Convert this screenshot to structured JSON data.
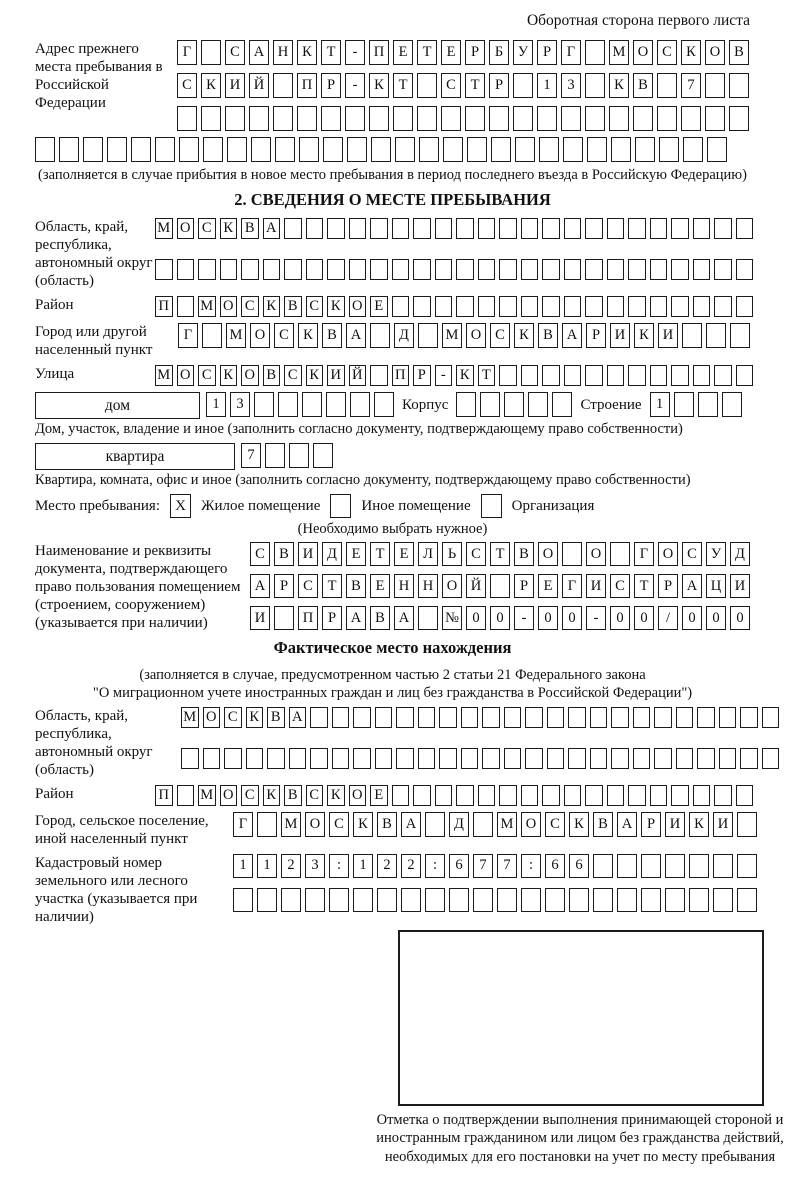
{
  "page": {
    "header_note": "Оборотная сторона первого листа"
  },
  "prev_address": {
    "label": "Адрес прежнего места пребывания в Российской Федерации",
    "rows": [
      [
        "Г",
        "",
        "С",
        "А",
        "Н",
        "К",
        "Т",
        "-",
        "П",
        "Е",
        "Т",
        "Е",
        "Р",
        "Б",
        "У",
        "Р",
        "Г",
        "",
        "М",
        "О",
        "С",
        "К",
        "О",
        "В"
      ],
      [
        "С",
        "К",
        "И",
        "Й",
        "",
        "П",
        "Р",
        "-",
        "К",
        "Т",
        "",
        "С",
        "Т",
        "Р",
        "",
        "1",
        "3",
        "",
        "К",
        "В",
        "",
        "7",
        "",
        ""
      ],
      [
        "",
        "",
        "",
        "",
        "",
        "",
        "",
        "",
        "",
        "",
        "",
        "",
        "",
        "",
        "",
        "",
        "",
        "",
        "",
        "",
        "",
        "",
        "",
        ""
      ]
    ],
    "row_full": [
      "",
      "",
      "",
      "",
      "",
      "",
      "",
      "",
      "",
      "",
      "",
      "",
      "",
      "",
      "",
      "",
      "",
      "",
      "",
      "",
      "",
      "",
      "",
      "",
      "",
      "",
      "",
      "",
      ""
    ],
    "note": "(заполняется в случае прибытия в новое место пребывания в период последнего въезда в Российскую Федерацию)"
  },
  "section2": {
    "title": "2. СВЕДЕНИЯ О МЕСТЕ ПРЕБЫВАНИЯ",
    "oblast": {
      "label": "Область, край, республика, автономный округ (область)",
      "rows": [
        [
          "М",
          "О",
          "С",
          "К",
          "В",
          "А",
          "",
          "",
          "",
          "",
          "",
          "",
          "",
          "",
          "",
          "",
          "",
          "",
          "",
          "",
          "",
          "",
          "",
          "",
          "",
          "",
          "",
          ""
        ],
        [
          "",
          "",
          "",
          "",
          "",
          "",
          "",
          "",
          "",
          "",
          "",
          "",
          "",
          "",
          "",
          "",
          "",
          "",
          "",
          "",
          "",
          "",
          "",
          "",
          "",
          "",
          "",
          ""
        ]
      ]
    },
    "raion": {
      "label": "Район",
      "row": [
        "П",
        "",
        "М",
        "О",
        "С",
        "К",
        "В",
        "С",
        "К",
        "О",
        "Е",
        "",
        "",
        "",
        "",
        "",
        "",
        "",
        "",
        "",
        "",
        "",
        "",
        "",
        "",
        "",
        "",
        ""
      ]
    },
    "gorod": {
      "label": "Город или другой населенный пункт",
      "row": [
        "Г",
        "",
        "М",
        "О",
        "С",
        "К",
        "В",
        "А",
        "",
        "Д",
        "",
        "М",
        "О",
        "С",
        "К",
        "В",
        "А",
        "Р",
        "И",
        "К",
        "И",
        "",
        "",
        ""
      ]
    },
    "ulitsa": {
      "label": "Улица",
      "row": [
        "М",
        "О",
        "С",
        "К",
        "О",
        "В",
        "С",
        "К",
        "И",
        "Й",
        "",
        "П",
        "Р",
        "-",
        "К",
        "Т",
        "",
        "",
        "",
        "",
        "",
        "",
        "",
        "",
        "",
        "",
        "",
        ""
      ]
    },
    "dom": {
      "box_label": "дом",
      "cells": [
        "1",
        "3",
        "",
        "",
        "",
        "",
        "",
        ""
      ],
      "korpus_label": "Корпус",
      "korpus_cells": [
        "",
        "",
        "",
        "",
        ""
      ],
      "stroenie_label": "Строение",
      "stroenie_cells": [
        "1",
        "",
        "",
        ""
      ],
      "caption": "Дом, участок, владение и иное (заполнить согласно документу, подтверждающему право собственности)"
    },
    "kvartira": {
      "box_label": "квартира",
      "cells": [
        "7",
        "",
        "",
        ""
      ],
      "caption": "Квартира, комната, офис и иное (заполнить согласно документу, подтверждающему право собственности)"
    },
    "mesto": {
      "label": "Место пребывания:",
      "options": [
        {
          "label": "Жилое помещение",
          "mark": "X"
        },
        {
          "label": "Иное помещение",
          "mark": ""
        },
        {
          "label": "Организация",
          "mark": ""
        }
      ],
      "note": "(Необходимо выбрать нужное)"
    },
    "doc": {
      "label": "Наименование и реквизиты документа, подтверждающего право пользования помещением (строением, сооружением) (указывается при наличии)",
      "rows": [
        [
          "С",
          "В",
          "И",
          "Д",
          "Е",
          "Т",
          "Е",
          "Л",
          "Ь",
          "С",
          "Т",
          "В",
          "О",
          "",
          "О",
          "",
          "Г",
          "О",
          "С",
          "У",
          "Д"
        ],
        [
          "А",
          "Р",
          "С",
          "Т",
          "В",
          "Е",
          "Н",
          "Н",
          "О",
          "Й",
          "",
          "Р",
          "Е",
          "Г",
          "И",
          "С",
          "Т",
          "Р",
          "А",
          "Ц",
          "И"
        ],
        [
          "И",
          "",
          "П",
          "Р",
          "А",
          "В",
          "А",
          "",
          "№",
          "0",
          "0",
          "-",
          "0",
          "0",
          "-",
          "0",
          "0",
          "/",
          "0",
          "0",
          "0"
        ]
      ]
    }
  },
  "fact": {
    "title": "Фактическое место нахождения",
    "note_line1": "(заполняется в случае, предусмотренном частью 2 статьи 21 Федерального закона",
    "note_line2": "\"О миграционном учете иностранных граждан и лиц без гражданства в Российской Федерации\")",
    "oblast": {
      "label": "Область, край, республика, автономный округ (область)",
      "rows": [
        [
          "М",
          "О",
          "С",
          "К",
          "В",
          "А",
          "",
          "",
          "",
          "",
          "",
          "",
          "",
          "",
          "",
          "",
          "",
          "",
          "",
          "",
          "",
          "",
          "",
          "",
          "",
          "",
          "",
          ""
        ],
        [
          "",
          "",
          "",
          "",
          "",
          "",
          "",
          "",
          "",
          "",
          "",
          "",
          "",
          "",
          "",
          "",
          "",
          "",
          "",
          "",
          "",
          "",
          "",
          "",
          "",
          "",
          "",
          ""
        ]
      ]
    },
    "raion": {
      "label": "Район",
      "row": [
        "П",
        "",
        "М",
        "О",
        "С",
        "К",
        "В",
        "С",
        "К",
        "О",
        "Е",
        "",
        "",
        "",
        "",
        "",
        "",
        "",
        "",
        "",
        "",
        "",
        "",
        "",
        "",
        "",
        "",
        ""
      ]
    },
    "gorod": {
      "label": "Город, сельское поселение, иной населенный пункт",
      "row": [
        "Г",
        "",
        "М",
        "О",
        "С",
        "К",
        "В",
        "А",
        "",
        "Д",
        "",
        "М",
        "О",
        "С",
        "К",
        "В",
        "А",
        "Р",
        "И",
        "К",
        "И",
        ""
      ]
    },
    "kadastr": {
      "label": "Кадастровый номер земельного или лесного участка (указывается при наличии)",
      "rows": [
        [
          "1",
          "1",
          "2",
          "3",
          ":",
          "1",
          "2",
          "2",
          ":",
          "6",
          "7",
          "7",
          ":",
          "6",
          "6",
          "",
          "",
          "",
          "",
          "",
          "",
          ""
        ],
        [
          "",
          "",
          "",
          "",
          "",
          "",
          "",
          "",
          "",
          "",
          "",
          "",
          "",
          "",
          "",
          "",
          "",
          "",
          "",
          "",
          "",
          ""
        ]
      ]
    },
    "stamp_caption": "Отметка о подтверждении выполнения принимающей стороной и иностранным гражданином или лицом без гражданства действий, необходимых для его постановки на учет по месту пребывания"
  }
}
